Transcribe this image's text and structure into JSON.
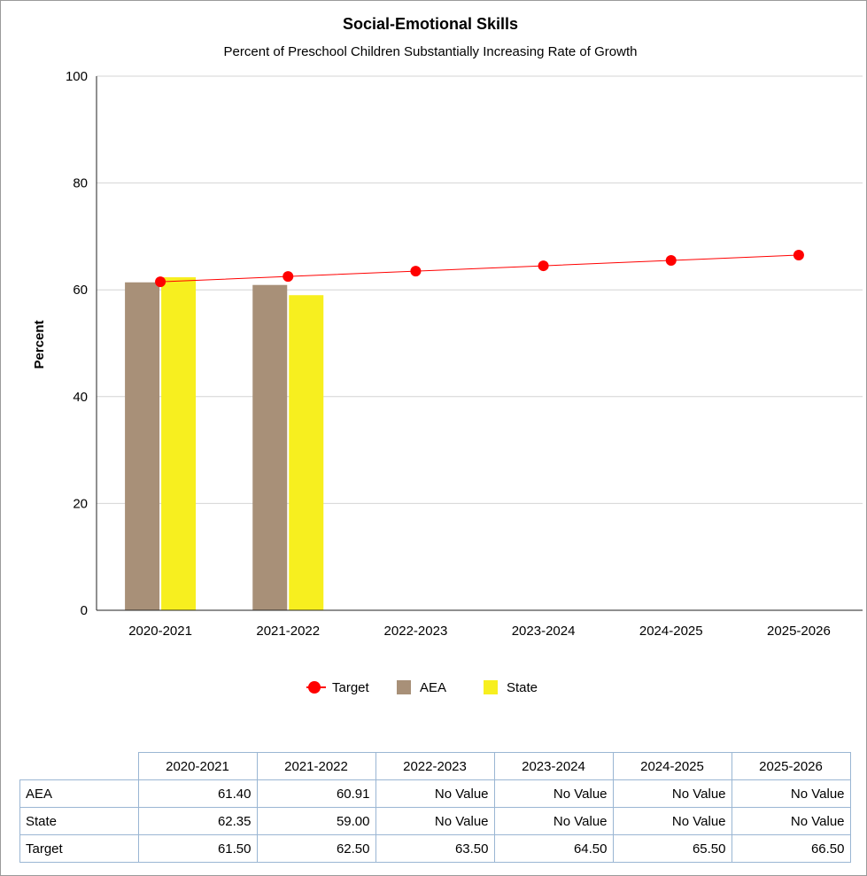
{
  "chart_data": {
    "type": "bar",
    "title": "Social-Emotional Skills",
    "subtitle": "Percent of Preschool Children Substantially Increasing Rate of Growth",
    "ylabel": "Percent",
    "xlabel": "",
    "ylim": [
      0,
      100
    ],
    "yticks": [
      0,
      20,
      40,
      60,
      80,
      100
    ],
    "grid": true,
    "legend_position": "bottom",
    "categories": [
      "2020-2021",
      "2021-2022",
      "2022-2023",
      "2023-2024",
      "2024-2025",
      "2025-2026"
    ],
    "series": [
      {
        "name": "AEA",
        "type": "bar",
        "color": "#a89078",
        "values": [
          61.4,
          60.91,
          null,
          null,
          null,
          null
        ]
      },
      {
        "name": "State",
        "type": "bar",
        "color": "#f7ef1f",
        "values": [
          62.35,
          59.0,
          null,
          null,
          null,
          null
        ]
      },
      {
        "name": "Target",
        "type": "line",
        "color": "#ff0000",
        "values": [
          61.5,
          62.5,
          63.5,
          64.5,
          65.5,
          66.5
        ]
      }
    ],
    "legend_order": [
      "Target",
      "AEA",
      "State"
    ]
  },
  "table": {
    "headers": [
      "2020-2021",
      "2021-2022",
      "2022-2023",
      "2023-2024",
      "2024-2025",
      "2025-2026"
    ],
    "rows": [
      {
        "label": "AEA",
        "cells": [
          "61.40",
          "60.91",
          "No Value",
          "No Value",
          "No Value",
          "No Value"
        ]
      },
      {
        "label": "State",
        "cells": [
          "62.35",
          "59.00",
          "No Value",
          "No Value",
          "No Value",
          "No Value"
        ]
      },
      {
        "label": "Target",
        "cells": [
          "61.50",
          "62.50",
          "63.50",
          "64.50",
          "65.50",
          "66.50"
        ]
      }
    ]
  }
}
